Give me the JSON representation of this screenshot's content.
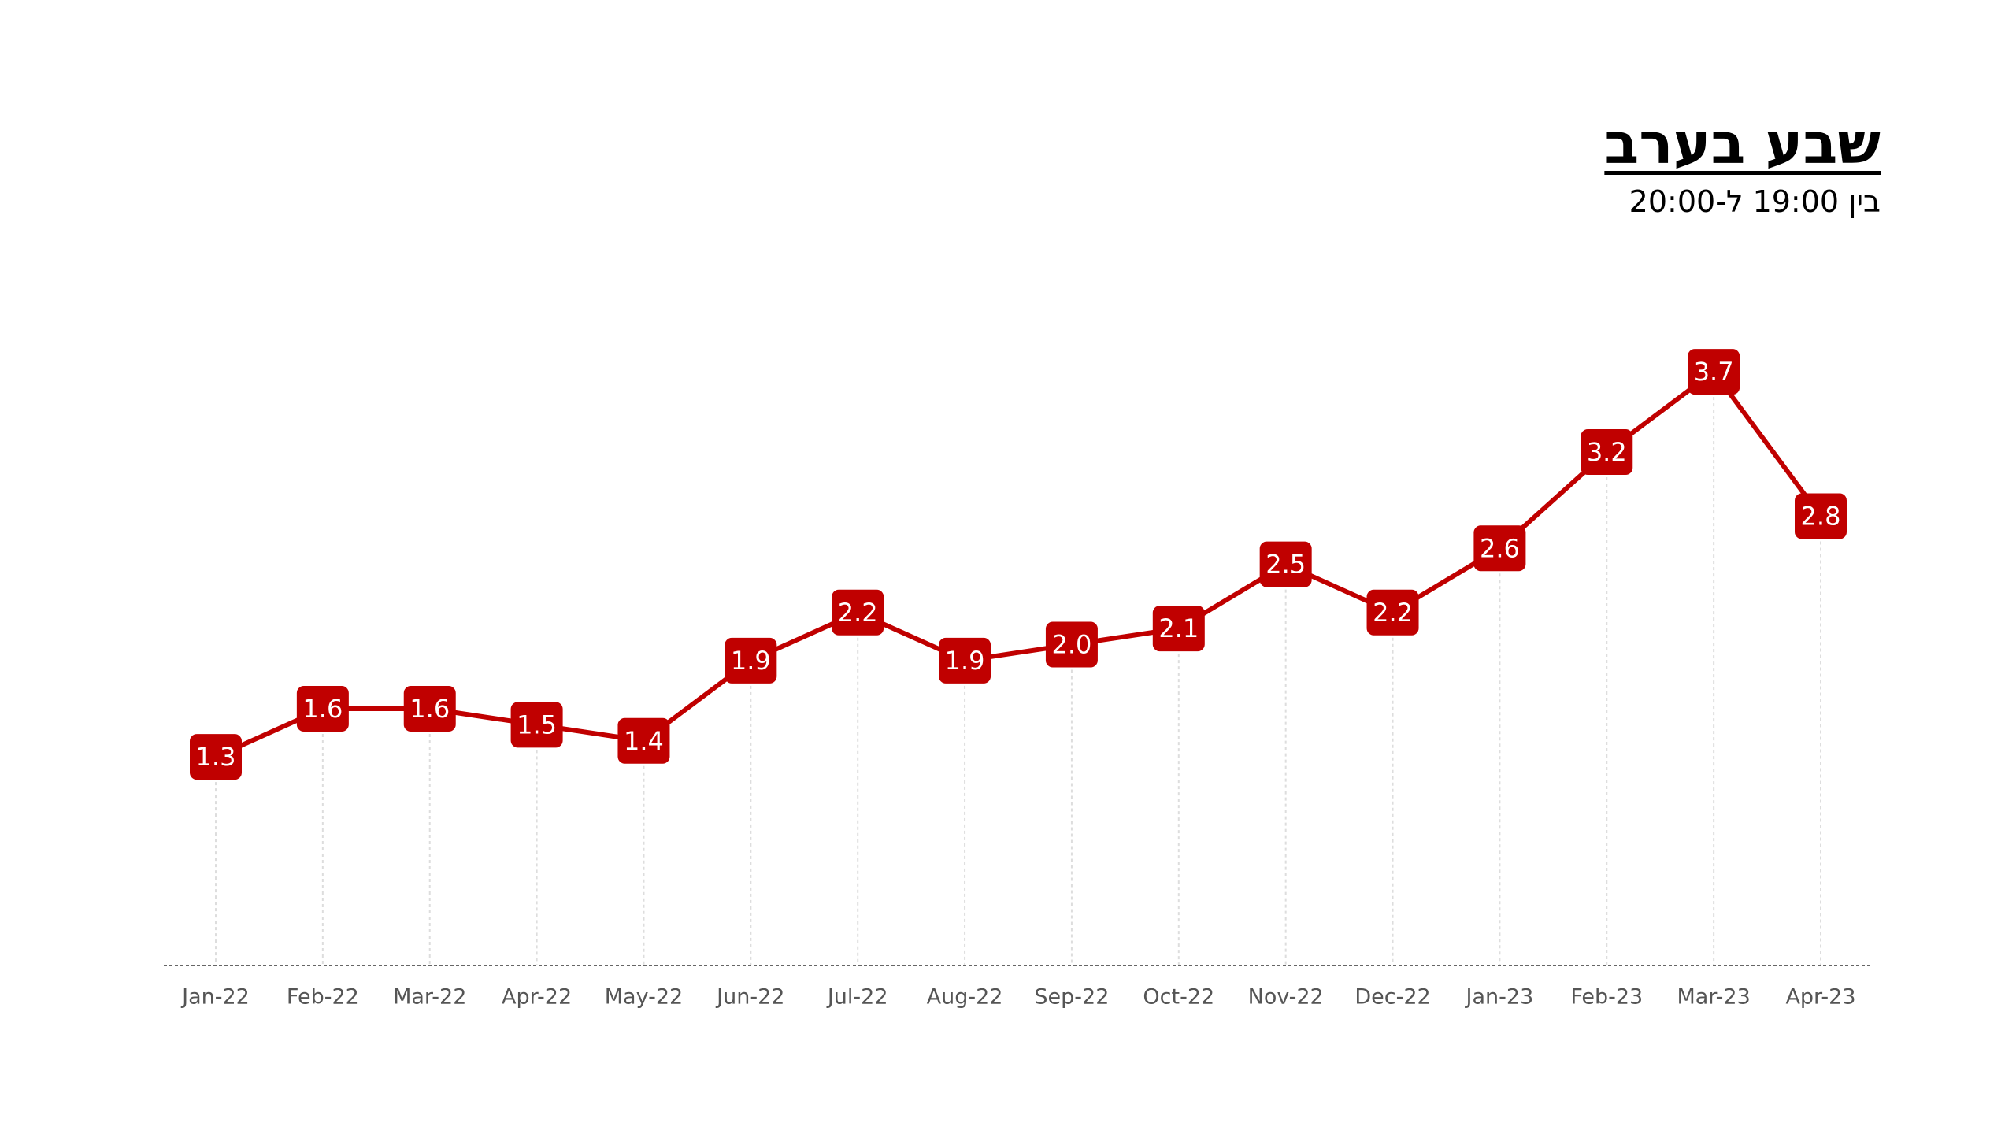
{
  "chart_data": {
    "type": "line",
    "title": "שבע בערב",
    "subtitle": "בין 19:00 ל-20:00",
    "categories": [
      "Jan-22",
      "Feb-22",
      "Mar-22",
      "Apr-22",
      "May-22",
      "Jun-22",
      "Jul-22",
      "Aug-22",
      "Sep-22",
      "Oct-22",
      "Nov-22",
      "Dec-22",
      "Jan-23",
      "Feb-23",
      "Mar-23",
      "Apr-23"
    ],
    "values": [
      1.3,
      1.6,
      1.6,
      1.5,
      1.4,
      1.9,
      2.2,
      1.9,
      2.0,
      2.1,
      2.5,
      2.2,
      2.6,
      3.2,
      3.7,
      2.8
    ],
    "value_labels": [
      "1.3",
      "1.6",
      "1.6",
      "1.5",
      "1.4",
      "1.9",
      "2.2",
      "1.9",
      "2.0",
      "2.1",
      "2.5",
      "2.2",
      "2.6",
      "3.2",
      "3.7",
      "2.8"
    ],
    "color": "#c00000",
    "ylim": [
      0,
      4
    ]
  }
}
